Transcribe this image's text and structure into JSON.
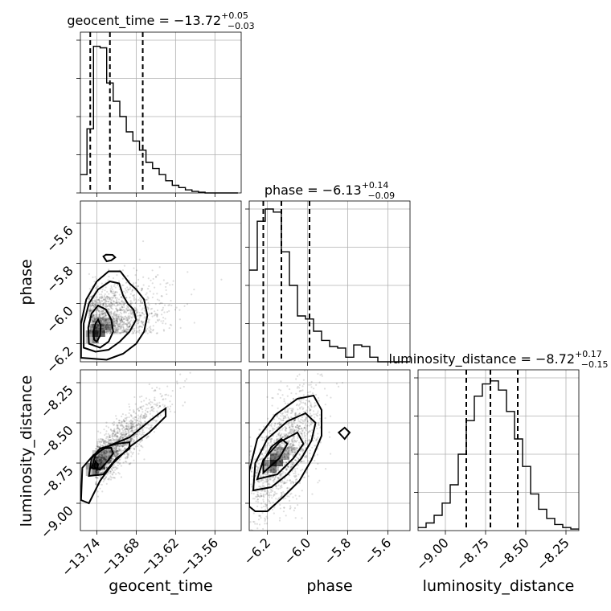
{
  "chart_data": {
    "type": "corner",
    "parameters": [
      "geocent_time",
      "phase",
      "luminosity_distance"
    ],
    "axis_labels": {
      "x": [
        "geocent_time",
        "phase",
        "luminosity_distance"
      ],
      "y": [
        "phase",
        "luminosity_distance"
      ]
    },
    "ranges": {
      "geocent_time": [
        -13.765,
        -13.52
      ],
      "phase": [
        -6.29,
        -5.49
      ],
      "luminosity_distance": [
        -9.17,
        -8.17
      ]
    },
    "ticks": {
      "geocent_time": {
        "values": [
          -13.74,
          -13.68,
          -13.62,
          -13.56
        ],
        "labels": [
          "−13.74",
          "−13.68",
          "−13.62",
          "−13.56"
        ]
      },
      "phase": {
        "values": [
          -6.2,
          -6.0,
          -5.8,
          -5.6
        ],
        "labels": [
          "−6.2",
          "−6.0",
          "−5.8",
          "−5.6"
        ]
      },
      "luminosity_distance": {
        "values": [
          -9.0,
          -8.75,
          -8.5,
          -8.25
        ],
        "labels": [
          "−9.00",
          "−8.75",
          "−8.50",
          "−8.25"
        ]
      }
    },
    "titles": [
      {
        "param": "geocent_time",
        "text": "geocent_time = −13.72",
        "sup": "+0.05",
        "sub": "−0.03"
      },
      {
        "param": "phase",
        "text": "phase = −6.13",
        "sup": "+0.14",
        "sub": "−0.09"
      },
      {
        "param": "luminosity_distance",
        "text": "luminosity_distance = −8.72",
        "sup": "+0.17",
        "sub": "−0.15"
      }
    ],
    "quantiles": {
      "geocent_time": [
        -13.75,
        -13.72,
        -13.67
      ],
      "phase": [
        -6.22,
        -6.13,
        -5.99
      ],
      "luminosity_distance": [
        -8.87,
        -8.72,
        -8.55
      ]
    },
    "histograms": {
      "geocent_time": {
        "edges_start": -13.765,
        "bin_width": 0.01,
        "counts": [
          0.12,
          0.42,
          0.96,
          0.95,
          0.72,
          0.6,
          0.5,
          0.4,
          0.34,
          0.28,
          0.2,
          0.16,
          0.12,
          0.08,
          0.05,
          0.035,
          0.02,
          0.01,
          0.005,
          0,
          0,
          0,
          0,
          0
        ]
      },
      "phase": {
        "edges_start": -6.29,
        "bin_width": 0.04,
        "counts": [
          0.6,
          0.92,
          1.0,
          0.98,
          0.72,
          0.5,
          0.3,
          0.28,
          0.2,
          0.14,
          0.1,
          0.09,
          0.03,
          0.11,
          0.1,
          0.03,
          0.0,
          0.0,
          0.0,
          0.0
        ]
      },
      "luminosity_distance": {
        "edges_start": -9.17,
        "bin_width": 0.05,
        "counts": [
          0.02,
          0.05,
          0.1,
          0.18,
          0.3,
          0.5,
          0.72,
          0.88,
          0.96,
          0.98,
          0.92,
          0.78,
          0.6,
          0.42,
          0.24,
          0.14,
          0.08,
          0.04,
          0.02,
          0.01
        ]
      }
    },
    "contours_2d": {
      "phase_vs_geocent_time": [
        [
          [
            -13.745,
            -6.14
          ],
          [
            -13.742,
            -6.1
          ],
          [
            -13.738,
            -6.08
          ],
          [
            -13.734,
            -6.11
          ],
          [
            -13.735,
            -6.16
          ],
          [
            -13.74,
            -6.19
          ],
          [
            -13.744,
            -6.18
          ]
        ],
        [
          [
            -13.752,
            -6.2
          ],
          [
            -13.753,
            -6.12
          ],
          [
            -13.748,
            -6.05
          ],
          [
            -13.738,
            -6.01
          ],
          [
            -13.726,
            -6.03
          ],
          [
            -13.718,
            -6.08
          ],
          [
            -13.715,
            -6.14
          ],
          [
            -13.722,
            -6.19
          ],
          [
            -13.735,
            -6.22
          ]
        ],
        [
          [
            -13.76,
            -6.22
          ],
          [
            -13.76,
            -6.1
          ],
          [
            -13.752,
            -6.0
          ],
          [
            -13.738,
            -5.93
          ],
          [
            -13.72,
            -5.89
          ],
          [
            -13.706,
            -5.9
          ],
          [
            -13.7,
            -5.96
          ],
          [
            -13.693,
            -6.0
          ],
          [
            -13.684,
            -6.03
          ],
          [
            -13.68,
            -6.08
          ],
          [
            -13.69,
            -6.14
          ],
          [
            -13.705,
            -6.19
          ],
          [
            -13.722,
            -6.23
          ],
          [
            -13.742,
            -6.24
          ]
        ],
        [
          [
            -13.764,
            -6.27
          ],
          [
            -13.764,
            -6.1
          ],
          [
            -13.756,
            -5.98
          ],
          [
            -13.74,
            -5.89
          ],
          [
            -13.722,
            -5.84
          ],
          [
            -13.704,
            -5.84
          ],
          [
            -13.69,
            -5.9
          ],
          [
            -13.68,
            -5.93
          ],
          [
            -13.668,
            -5.98
          ],
          [
            -13.663,
            -6.06
          ],
          [
            -13.668,
            -6.14
          ],
          [
            -13.68,
            -6.2
          ],
          [
            -13.7,
            -6.25
          ],
          [
            -13.725,
            -6.28
          ]
        ],
        [
          [
            -13.725,
            -5.79
          ],
          [
            -13.73,
            -5.766
          ],
          [
            -13.726,
            -5.757
          ],
          [
            -13.716,
            -5.758
          ],
          [
            -13.712,
            -5.771
          ],
          [
            -13.718,
            -5.785
          ]
        ]
      ],
      "luminosity_distance_vs_geocent_time": [
        [
          [
            -13.744,
            -8.77
          ],
          [
            -13.742,
            -8.74
          ],
          [
            -13.738,
            -8.76
          ],
          [
            -13.74,
            -8.79
          ]
        ],
        [
          [
            -13.748,
            -8.78
          ],
          [
            -13.742,
            -8.7
          ],
          [
            -13.73,
            -8.66
          ],
          [
            -13.718,
            -8.655
          ],
          [
            -13.715,
            -8.69
          ],
          [
            -13.722,
            -8.73
          ],
          [
            -13.735,
            -8.79
          ]
        ],
        [
          [
            -13.752,
            -8.83
          ],
          [
            -13.748,
            -8.72
          ],
          [
            -13.735,
            -8.66
          ],
          [
            -13.71,
            -8.63
          ],
          [
            -13.69,
            -8.62
          ],
          [
            -13.69,
            -8.66
          ],
          [
            -13.71,
            -8.72
          ],
          [
            -13.73,
            -8.82
          ]
        ],
        [
          [
            -13.764,
            -8.98
          ],
          [
            -13.762,
            -8.78
          ],
          [
            -13.745,
            -8.7
          ],
          [
            -13.72,
            -8.64
          ],
          [
            -13.69,
            -8.59
          ],
          [
            -13.66,
            -8.49
          ],
          [
            -13.635,
            -8.41
          ],
          [
            -13.635,
            -8.46
          ],
          [
            -13.66,
            -8.56
          ],
          [
            -13.69,
            -8.65
          ],
          [
            -13.715,
            -8.75
          ],
          [
            -13.735,
            -8.86
          ],
          [
            -13.752,
            -9.0
          ]
        ]
      ],
      "luminosity_distance_vs_phase": [
        [
          [
            -6.22,
            -8.81
          ],
          [
            -6.14,
            -8.72
          ],
          [
            -6.1,
            -8.63
          ],
          [
            -6.13,
            -8.6
          ],
          [
            -6.18,
            -8.65
          ],
          [
            -6.22,
            -8.74
          ]
        ],
        [
          [
            -6.25,
            -8.85
          ],
          [
            -6.22,
            -8.73
          ],
          [
            -6.14,
            -8.62
          ],
          [
            -6.05,
            -8.56
          ],
          [
            -6.02,
            -8.63
          ],
          [
            -6.07,
            -8.72
          ],
          [
            -6.15,
            -8.82
          ]
        ],
        [
          [
            -6.27,
            -8.92
          ],
          [
            -6.26,
            -8.75
          ],
          [
            -6.2,
            -8.6
          ],
          [
            -6.1,
            -8.49
          ],
          [
            -6.01,
            -8.44
          ],
          [
            -5.96,
            -8.5
          ],
          [
            -5.98,
            -8.61
          ],
          [
            -6.03,
            -8.72
          ],
          [
            -6.1,
            -8.82
          ],
          [
            -6.18,
            -8.9
          ]
        ],
        [
          [
            -6.29,
            -9.02
          ],
          [
            -6.29,
            -8.8
          ],
          [
            -6.25,
            -8.6
          ],
          [
            -6.16,
            -8.45
          ],
          [
            -6.05,
            -8.35
          ],
          [
            -5.97,
            -8.33
          ],
          [
            -5.93,
            -8.42
          ],
          [
            -5.93,
            -8.58
          ],
          [
            -5.98,
            -8.73
          ],
          [
            -6.04,
            -8.86
          ],
          [
            -6.12,
            -8.96
          ],
          [
            -6.2,
            -9.05
          ],
          [
            -6.26,
            -9.05
          ]
        ],
        [
          [
            -5.845,
            -8.56
          ],
          [
            -5.815,
            -8.53
          ],
          [
            -5.79,
            -8.56
          ],
          [
            -5.815,
            -8.6
          ]
        ]
      ]
    },
    "density_peaks": {
      "phase_vs_geocent_time": [
        -13.742,
        -6.15
      ],
      "luminosity_distance_vs_geocent_time": [
        -13.742,
        -8.77
      ],
      "luminosity_distance_vs_phase": [
        -6.17,
        -8.75
      ]
    },
    "grid": true
  }
}
